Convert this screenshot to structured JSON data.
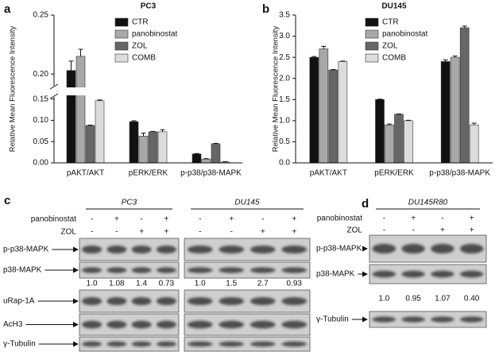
{
  "panel_labels": [
    "a",
    "b",
    "c",
    "d"
  ],
  "chart_data": [
    {
      "type": "bar",
      "title": "PC3",
      "y_label": "Relative Mean Fluorescence Intensity",
      "categories": [
        "pAKT/AKT",
        "pERK/ERK",
        "p-p38/p38-MAPK"
      ],
      "series": [
        {
          "name": "CTR",
          "color": "#111111",
          "values": [
            0.203,
            0.097,
            0.021
          ],
          "errors": [
            0.008,
            0.002,
            0.001
          ]
        },
        {
          "name": "panobinostat",
          "color": "#a8a8a8",
          "values": [
            0.215,
            0.063,
            0.009
          ],
          "errors": [
            0.006,
            0.007,
            0.001
          ]
        },
        {
          "name": "ZOL",
          "color": "#666666",
          "values": [
            0.088,
            0.073,
            0.045
          ],
          "errors": [
            0.001,
            0.001,
            0.001
          ]
        },
        {
          "name": "COMB",
          "color": "#dcdcdc",
          "values": [
            0.146,
            0.073,
            0.002
          ],
          "errors": [
            0.002,
            0.005,
            0.001
          ]
        }
      ],
      "ylim": [
        0,
        0.25
      ],
      "y_break": [
        0.155,
        0.19
      ],
      "yticks": [
        {
          "value": 0,
          "label": "0.00"
        },
        0.05,
        {
          "value": 0.1,
          "label": "0.10"
        },
        0.15,
        {
          "value": 0.2,
          "label": "0.20"
        },
        0.25
      ],
      "legend": "top-right"
    },
    {
      "type": "bar",
      "title": "DU145",
      "y_label": "Relative Mean Fluorescence Intensity",
      "categories": [
        "pAKT/AKT",
        "pERK/ERK",
        "p-p38/p38-MAPK"
      ],
      "series": [
        {
          "name": "CTR",
          "color": "#111111",
          "values": [
            2.5,
            1.5,
            2.4
          ],
          "errors": [
            0.02,
            0.01,
            0.04
          ]
        },
        {
          "name": "panobinostat",
          "color": "#a8a8a8",
          "values": [
            2.7,
            0.9,
            2.5
          ],
          "errors": [
            0.06,
            0.02,
            0.03
          ]
        },
        {
          "name": "ZOL",
          "color": "#666666",
          "values": [
            2.2,
            1.15,
            3.2
          ],
          "errors": [
            0.01,
            0.01,
            0.04
          ]
        },
        {
          "name": "COMB",
          "color": "#dcdcdc",
          "values": [
            2.4,
            1.0,
            0.9
          ],
          "errors": [
            0.01,
            0.01,
            0.04
          ]
        }
      ],
      "ylim": [
        0,
        3.5
      ],
      "yticks": [
        {
          "value": 0,
          "label": "0.0"
        },
        0.5,
        {
          "value": 1,
          "label": "1.0"
        },
        1.5,
        {
          "value": 2,
          "label": "2.0"
        },
        2.5,
        {
          "value": 3,
          "label": "3.0"
        },
        3.5
      ],
      "legend": "top-right"
    }
  ],
  "blots": {
    "c": {
      "groups": [
        {
          "name": "PC3",
          "values": [
            "1.0",
            "1.08",
            "1.4",
            "0.73"
          ]
        },
        {
          "name": "DU145",
          "values": [
            "1.0",
            "1.5",
            "2.7",
            "0.93"
          ]
        }
      ],
      "treatments": [
        {
          "name": "panobinostat",
          "signs": [
            "-",
            "+",
            "-",
            "+"
          ]
        },
        {
          "name": "ZOL",
          "signs": [
            "-",
            "-",
            "+",
            "+"
          ]
        }
      ],
      "bands": [
        "p-p38-MAPK",
        "p38-MAPK",
        "uRap-1A",
        "AcH3",
        "γ-Tubulin"
      ]
    },
    "d": {
      "groups": [
        {
          "name": "DU145R80",
          "values": [
            "1.0",
            "0.95",
            "1.07",
            "0.40"
          ]
        }
      ],
      "treatments": [
        {
          "name": "panobinostat",
          "signs": [
            "-",
            "+",
            "-",
            "+"
          ]
        },
        {
          "name": "ZOL",
          "signs": [
            "-",
            "-",
            "+",
            "+"
          ]
        }
      ],
      "bands": [
        "p-p38-MAPK",
        "p38-MAPK",
        "γ-Tubulin"
      ]
    }
  }
}
